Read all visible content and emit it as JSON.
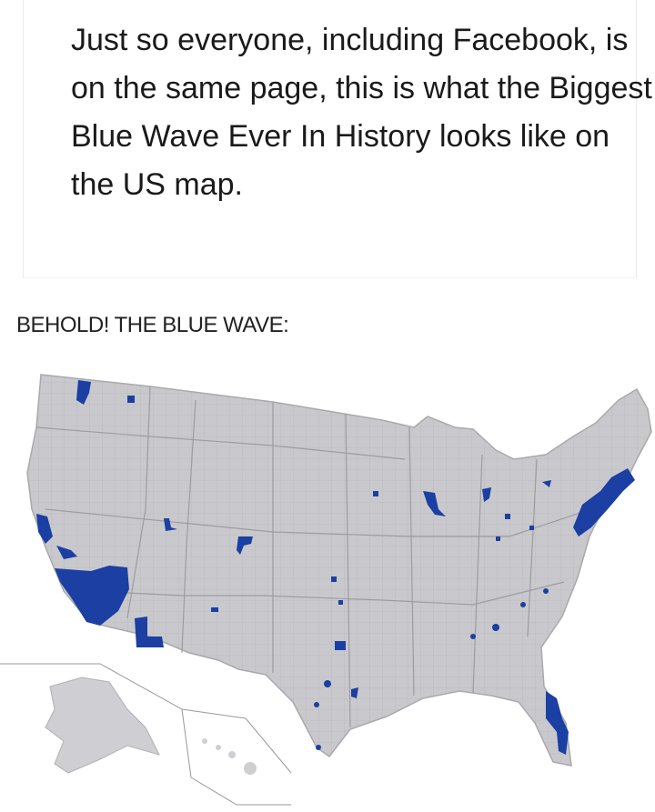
{
  "post": {
    "text": "Just so everyone, including Facebook, is on the same page, this is what the Biggest Blue Wave Ever In History looks like on the US map."
  },
  "caption": "BEHOLD! THE BLUE WAVE:",
  "map": {
    "subject": "US county map",
    "base_color": "#c9c9cd",
    "highlight_color": "#1b3fa3",
    "border_color": "#a9a9ad"
  }
}
